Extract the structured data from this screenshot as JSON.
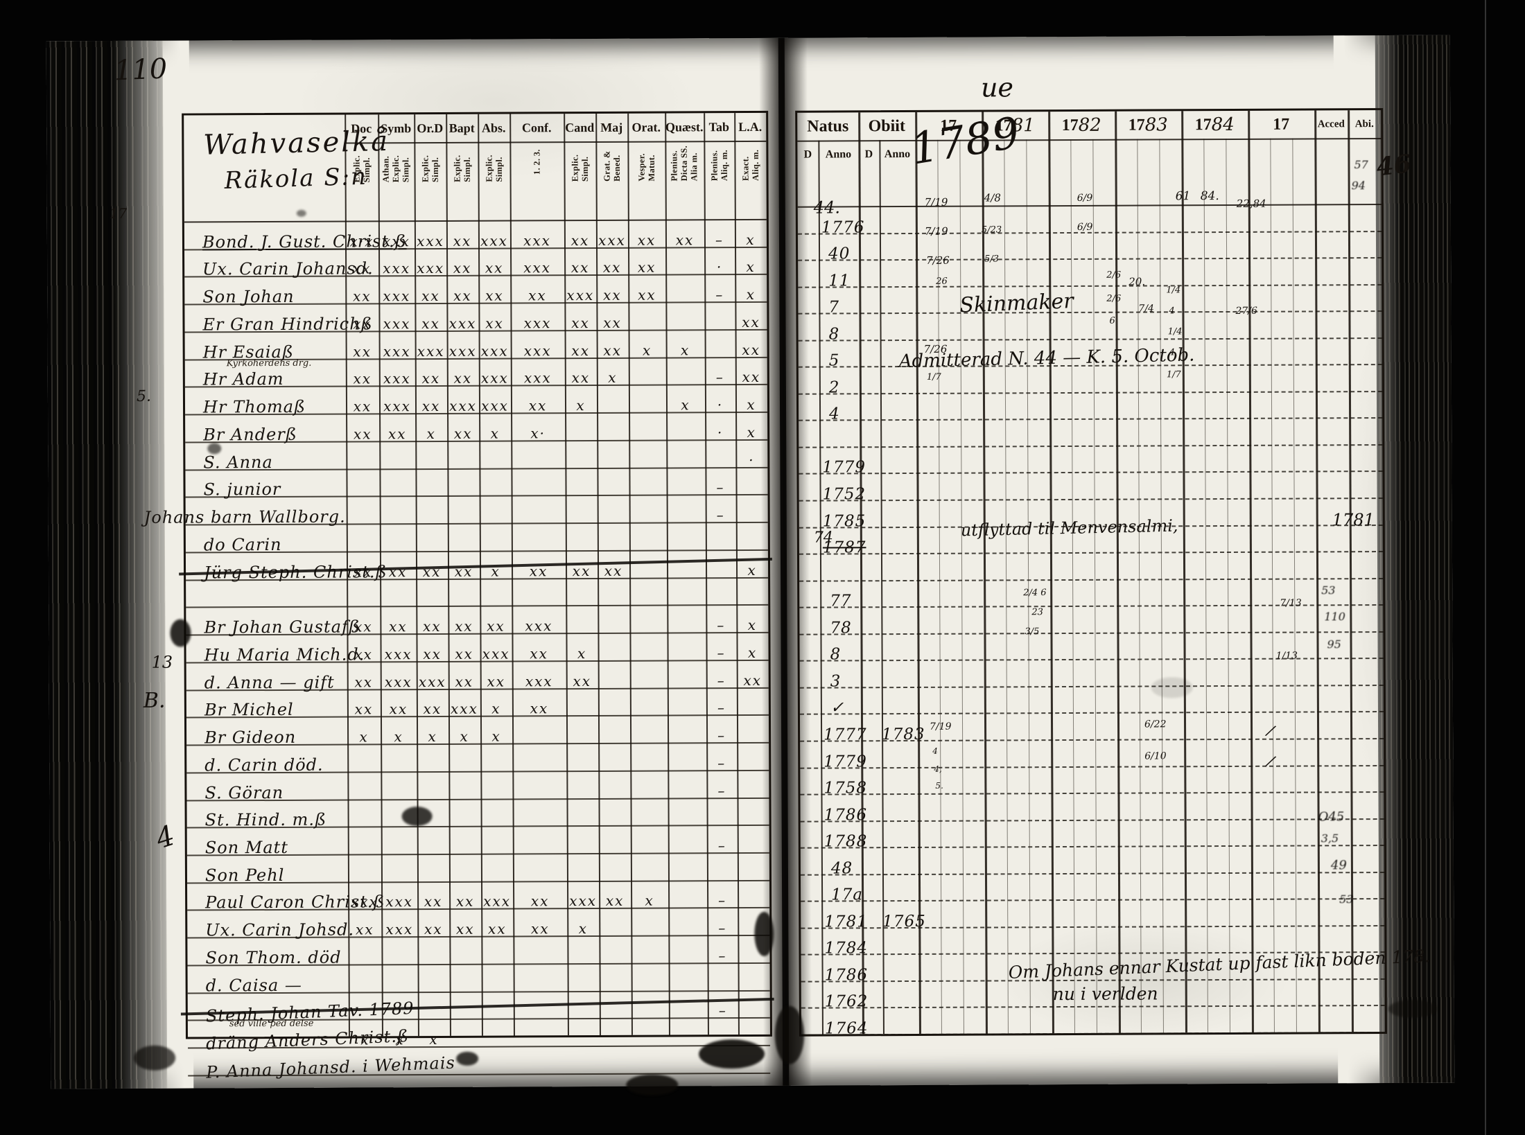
{
  "page": {
    "number": "110",
    "corner_script": "ue",
    "margin_number": "46"
  },
  "left_table": {
    "title_line1": "Wahvaselkå",
    "title_line2": "Räkola S:n",
    "columns": [
      {
        "label": "Doc",
        "sub": "Explic. Simpl."
      },
      {
        "label": "Symb",
        "sub": "Athan. Explic. Simpl."
      },
      {
        "label": "Or.D",
        "sub": "Explic. Simpl."
      },
      {
        "label": "Bapt",
        "sub": "Explic. Simpl."
      },
      {
        "label": "Abs.",
        "sub": "Explic. Simpl."
      },
      {
        "label": "Conf.",
        "sub": "1. 2. 3."
      },
      {
        "label": "Cand",
        "sub": "Explic. Simpl."
      },
      {
        "label": "Maj",
        "sub": "Grat. & Bened."
      },
      {
        "label": "Orat.",
        "sub": "Vesper. Matut."
      },
      {
        "label": "Quæst.",
        "sub": "Plenius. Dicta SS. Alia m."
      },
      {
        "label": "Tab",
        "sub": "Plenius. Aliq. m."
      },
      {
        "label": "L.A.",
        "sub": "Exact. Aliq. m."
      }
    ],
    "rows": [
      {
        "name": "Bond. J. Gust. Christ.ß",
        "u": true,
        "marks": [
          "x·x",
          "xxx",
          "xxx",
          "xx",
          "xxx",
          "xxx",
          "xx",
          "xxx",
          "xx",
          "xx",
          "–",
          "x"
        ]
      },
      {
        "name": "Ux. Carin Johansd.",
        "marks": [
          "xx",
          "xxx",
          "xxx",
          "xx",
          "xx",
          "xxx",
          "xx",
          "xx",
          "xx",
          "",
          "·",
          "x"
        ]
      },
      {
        "name": "Son Johan",
        "marks": [
          "xx",
          "xxx",
          "xx",
          "xx",
          "xx",
          "xx",
          "xxx",
          "xx",
          "xx",
          "",
          "–",
          "x"
        ]
      },
      {
        "name": "Er Gran Hindrichß",
        "marks": [
          "xx",
          "xxx",
          "xx",
          "xxx",
          "xx",
          "xxx",
          "xx",
          "xx",
          "",
          "",
          "",
          "xx"
        ]
      },
      {
        "name": "Hr Esaiaß",
        "sub": "Kyrkoherdens drg.",
        "marks": [
          "xx",
          "xxx",
          "xxx",
          "xxx",
          "xxx",
          "xxx",
          "xx",
          "xx",
          "x",
          "x",
          "",
          "xx"
        ]
      },
      {
        "name": "Hr Adam",
        "marks": [
          "xx",
          "xxx",
          "xx",
          "xx",
          "xxx",
          "xxx",
          "xx",
          "x",
          "",
          "",
          "–",
          "xx"
        ]
      },
      {
        "name": "Hr Thomaß",
        "marks": [
          "xx",
          "xxx",
          "xx",
          "xxx",
          "xxx",
          "xx",
          "x",
          "",
          "",
          "x",
          "·",
          "x"
        ]
      },
      {
        "name": "Br Anderß",
        "marks": [
          "xx",
          "xx",
          "x",
          "xx",
          "x",
          "x·",
          "",
          "",
          "",
          "",
          "·",
          "x"
        ]
      },
      {
        "name": "S. Anna",
        "marks": [
          "",
          "",
          "",
          "",
          "",
          "",
          "",
          "",
          "",
          "",
          "",
          "·"
        ]
      },
      {
        "name": "S. junior",
        "marks": [
          "",
          "",
          "",
          "",
          "",
          "",
          "",
          "",
          "",
          "",
          "–",
          ""
        ]
      },
      {
        "name": "Johans barn Wallborg.",
        "outdent": true,
        "marks": [
          "",
          "",
          "",
          "",
          "",
          "",
          "",
          "",
          "",
          "",
          "–",
          ""
        ]
      },
      {
        "name": "do Carin",
        "marks": [
          "",
          "",
          "",
          "",
          "",
          "",
          "",
          "",
          "",
          "",
          "",
          ""
        ]
      },
      {
        "name": "Jürg Steph. Christ.ß",
        "struck": true,
        "marks": [
          "xx",
          "xx",
          "xx",
          "xx",
          "x",
          "xx",
          "xx",
          "xx",
          "",
          "",
          "",
          "x"
        ]
      },
      {
        "name": "",
        "marks": [
          "",
          "",
          "",
          "",
          "",
          "",
          "",
          "",
          "",
          "",
          "",
          ""
        ]
      },
      {
        "name": "Br Johan Gustafß",
        "marks": [
          "xx",
          "xx",
          "xx",
          "xx",
          "xx",
          "xxx",
          "",
          "",
          "",
          "",
          "–",
          "x"
        ]
      },
      {
        "name": "Hu Maria Mich.d.",
        "marks": [
          "xx",
          "xxx",
          "xx",
          "xx",
          "xxx",
          "xx",
          "x",
          "",
          "",
          "",
          "–",
          "x"
        ]
      },
      {
        "name": "d. Anna — gift",
        "marks": [
          "xx",
          "xxx",
          "xxx",
          "xx",
          "xx",
          "xxx",
          "xx",
          "",
          "",
          "",
          "–",
          "xx"
        ]
      },
      {
        "name": "Br Michel",
        "marks": [
          "xx",
          "xx",
          "xx",
          "xxx",
          "x",
          "xx",
          "",
          "",
          "",
          "",
          "–",
          ""
        ]
      },
      {
        "name": "Br Gideon",
        "marks": [
          "x",
          "x",
          "x",
          "x",
          "x",
          "",
          "",
          "",
          "",
          "",
          "–",
          ""
        ]
      },
      {
        "name": "d. Carin död.",
        "marks": [
          "",
          "",
          "",
          "",
          "",
          "",
          "",
          "",
          "",
          "",
          "–",
          ""
        ]
      },
      {
        "name": "S. Göran",
        "marks": [
          "",
          "",
          "",
          "",
          "",
          "",
          "",
          "",
          "",
          "",
          "–",
          ""
        ]
      },
      {
        "name": "St. Hind. m.ß",
        "marks": [
          "",
          "",
          "",
          "",
          "",
          "",
          "",
          "",
          "",
          "",
          "",
          ""
        ]
      },
      {
        "name": "Son Matt",
        "marks": [
          "",
          "",
          "",
          "",
          "",
          "",
          "",
          "",
          "",
          "",
          "–",
          ""
        ]
      },
      {
        "name": "Son Pehl",
        "marks": [
          "",
          "",
          "",
          "",
          "",
          "",
          "",
          "",
          "",
          "",
          "",
          ""
        ]
      },
      {
        "name": "Paul Caron Christ.ß",
        "marks": [
          "xxx",
          "xxx",
          "xx",
          "xx",
          "xxx",
          "xx",
          "xxx",
          "xx",
          "x",
          "",
          "–",
          ""
        ]
      },
      {
        "name": "Ux. Carin Johsd.",
        "marks": [
          "xx",
          "xxx",
          "xx",
          "xx",
          "xx",
          "xx",
          "x",
          "",
          "",
          "",
          "–",
          ""
        ]
      },
      {
        "name": "Son Thom. död",
        "marks": [
          "",
          "",
          "",
          "",
          "",
          "",
          "",
          "",
          "",
          "",
          "–",
          ""
        ]
      },
      {
        "name": "d. Caisa —",
        "marks": [
          "",
          "",
          "",
          "",
          "",
          "",
          "",
          "",
          "",
          "",
          "",
          ""
        ]
      },
      {
        "name": "Steph. Johan Tav. 1789",
        "sub": "sed ville ped delse",
        "struck": true,
        "marks": [
          "",
          "",
          "",
          "",
          "",
          "",
          "",
          "",
          "",
          "",
          "–",
          ""
        ]
      },
      {
        "name": "dräng Anders Christ.ß",
        "marks": [
          "x",
          "x",
          "x",
          "",
          "",
          "",
          "",
          "",
          "",
          "",
          "",
          ""
        ]
      },
      {
        "name": "P. Anna Johansd. i Wehmais",
        "marks": [
          "",
          "",
          "",
          "",
          "",
          "",
          "",
          "",
          "",
          "",
          "",
          ""
        ]
      }
    ]
  },
  "right_table": {
    "headers": {
      "natus": "Natus",
      "obiit": "Obiit",
      "natus_sub_d": "D",
      "natus_sub_anno": "Anno",
      "obiit_sub_d": "D",
      "obiit_sub_anno": "Anno",
      "years": [
        {
          "printed": "17",
          "script": ""
        },
        {
          "printed": "17",
          "script": "81"
        },
        {
          "printed": "17",
          "script": "82"
        },
        {
          "printed": "17",
          "script": "83"
        },
        {
          "printed": "17",
          "script": "84"
        },
        {
          "printed": "17",
          "script": ""
        }
      ],
      "acced": "Acced",
      "abi": "Abi."
    },
    "rows": [
      {
        "natus": "1776",
        "obiit": ""
      },
      {
        "natus": "40",
        "obiit": ""
      },
      {
        "natus": "11",
        "obiit": ""
      },
      {
        "natus": "7",
        "obiit": ""
      },
      {
        "natus": "8",
        "obiit": ""
      },
      {
        "natus": "5",
        "obiit": ""
      },
      {
        "natus": "2",
        "obiit": ""
      },
      {
        "natus": "4",
        "obiit": ""
      },
      {
        "natus": "",
        "obiit": ""
      },
      {
        "natus": "1779",
        "obiit": ""
      },
      {
        "natus": "1752",
        "obiit": ""
      },
      {
        "natus": "1785",
        "obiit": ""
      },
      {
        "natus": "1787",
        "obiit": "",
        "struck": true
      },
      {
        "natus": "",
        "obiit": ""
      },
      {
        "natus": "77",
        "obiit": ""
      },
      {
        "natus": "78",
        "obiit": ""
      },
      {
        "natus": "8",
        "obiit": ""
      },
      {
        "natus": "3",
        "obiit": ""
      },
      {
        "natus": "✓",
        "obiit": ""
      },
      {
        "natus": "1777",
        "obiit": "1783"
      },
      {
        "natus": "1779",
        "obiit": ""
      },
      {
        "natus": "1758",
        "obiit": ""
      },
      {
        "natus": "1786",
        "obiit": ""
      },
      {
        "natus": "1788",
        "obiit": ""
      },
      {
        "natus": "48",
        "obiit": ""
      },
      {
        "natus": "17a",
        "obiit": ""
      },
      {
        "natus": "1781",
        "obiit": "1765"
      },
      {
        "natus": "1784",
        "obiit": ""
      },
      {
        "natus": "1786",
        "obiit": ""
      },
      {
        "natus": "1762",
        "obiit": ""
      },
      {
        "natus": "1764",
        "obiit": ""
      }
    ]
  },
  "annotations": [
    [
      "110",
      168,
      74,
      40,
      -2,
      ""
    ],
    [
      "ue",
      1418,
      106,
      38,
      0,
      ""
    ],
    [
      "46",
      1988,
      222,
      36,
      -6,
      "bold"
    ],
    [
      "17",
      160,
      292,
      20,
      0,
      ""
    ],
    [
      "5.",
      198,
      556,
      22,
      0,
      ""
    ],
    [
      "13",
      218,
      938,
      24,
      0,
      ""
    ],
    [
      "B.",
      206,
      990,
      30,
      0,
      ""
    ],
    [
      "4",
      224,
      1182,
      40,
      -18,
      ""
    ],
    [
      "1789",
      1316,
      168,
      62,
      -9,
      ""
    ],
    [
      "Skinmaker",
      1386,
      422,
      30,
      -2,
      ""
    ],
    [
      "Admitterad N. 44 — K. 5. Octob.",
      1298,
      504,
      26,
      -1,
      ""
    ],
    [
      "utflyttad til Menvensalmi,",
      1386,
      750,
      24,
      -1,
      ""
    ],
    [
      "1781",
      1922,
      740,
      24,
      0,
      ""
    ],
    [
      "Om Johans ennar Kustat up fast likn boden 178.",
      1452,
      1380,
      25,
      -2,
      ""
    ],
    [
      "nu i verlden",
      1516,
      1422,
      25,
      0,
      ""
    ],
    [
      "44.",
      1176,
      286,
      24,
      0,
      ""
    ],
    [
      "74",
      1174,
      764,
      22,
      0,
      ""
    ],
    [
      "7/19",
      1336,
      284,
      15,
      0,
      ""
    ],
    [
      "7/19",
      1336,
      326,
      15,
      0,
      ""
    ],
    [
      "7/26",
      1338,
      368,
      15,
      0,
      ""
    ],
    [
      "26",
      1352,
      400,
      13,
      0,
      ""
    ],
    [
      "7/26",
      1334,
      496,
      15,
      0,
      ""
    ],
    [
      "1/7",
      1338,
      538,
      13,
      0,
      ""
    ],
    [
      "4/8",
      1422,
      278,
      15,
      0,
      ""
    ],
    [
      "5/23",
      1418,
      326,
      13,
      0,
      ""
    ],
    [
      "5/3",
      1422,
      368,
      13,
      0,
      ""
    ],
    [
      "6/9",
      1556,
      280,
      14,
      0,
      ""
    ],
    [
      "6/9",
      1556,
      322,
      14,
      0,
      ""
    ],
    [
      "2/6",
      1598,
      392,
      13,
      0,
      ""
    ],
    [
      "2/6",
      1598,
      426,
      13,
      0,
      ""
    ],
    [
      "6",
      1602,
      458,
      13,
      0,
      ""
    ],
    [
      "20.",
      1630,
      400,
      15,
      0,
      ""
    ],
    [
      "7/4",
      1644,
      440,
      14,
      0,
      ""
    ],
    [
      "61",
      1698,
      276,
      17,
      0,
      ""
    ],
    [
      "84.",
      1734,
      276,
      17,
      0,
      ""
    ],
    [
      "1/4",
      1684,
      414,
      13,
      0,
      ""
    ],
    [
      "4",
      1688,
      444,
      13,
      0,
      ""
    ],
    [
      "1/4",
      1686,
      474,
      13,
      0,
      ""
    ],
    [
      "4",
      1688,
      504,
      13,
      0,
      ""
    ],
    [
      "1/7",
      1684,
      536,
      13,
      0,
      ""
    ],
    [
      "22,84",
      1786,
      288,
      15,
      0,
      ""
    ],
    [
      "27/6",
      1784,
      444,
      14,
      0,
      ""
    ],
    [
      "7/19",
      1340,
      1042,
      14,
      0,
      ""
    ],
    [
      "4",
      1344,
      1078,
      12,
      0,
      ""
    ],
    [
      "4,",
      1346,
      1104,
      12,
      0,
      ""
    ],
    [
      "5.",
      1348,
      1128,
      12,
      0,
      ""
    ],
    [
      "6/22",
      1650,
      1040,
      14,
      0,
      ""
    ],
    [
      "6/10",
      1650,
      1086,
      14,
      0,
      ""
    ],
    [
      "/",
      1828,
      1046,
      22,
      20,
      ""
    ],
    [
      "/",
      1828,
      1090,
      22,
      20,
      ""
    ],
    [
      "2/4 6",
      1476,
      850,
      13,
      0,
      ""
    ],
    [
      "23",
      1488,
      878,
      13,
      0,
      ""
    ],
    [
      "3/5",
      1478,
      906,
      13,
      0,
      ""
    ],
    [
      "7/13",
      1846,
      866,
      14,
      0,
      ""
    ],
    [
      "1/13",
      1840,
      942,
      14,
      0,
      ""
    ],
    [
      "57",
      1956,
      232,
      16,
      0,
      "smudge"
    ],
    [
      "94",
      1952,
      262,
      16,
      0,
      "smudge"
    ],
    [
      "53",
      1906,
      846,
      16,
      0,
      "smudge"
    ],
    [
      "110",
      1910,
      884,
      16,
      0,
      "smudge"
    ],
    [
      "95",
      1914,
      924,
      16,
      0,
      "smudge"
    ],
    [
      "O45",
      1900,
      1172,
      18,
      0,
      "smudge"
    ],
    [
      "3,5",
      1904,
      1204,
      16,
      0,
      "smudge"
    ],
    [
      "49",
      1918,
      1242,
      18,
      0,
      "smudge"
    ],
    [
      "53",
      1930,
      1292,
      16,
      0,
      "smudge"
    ]
  ]
}
